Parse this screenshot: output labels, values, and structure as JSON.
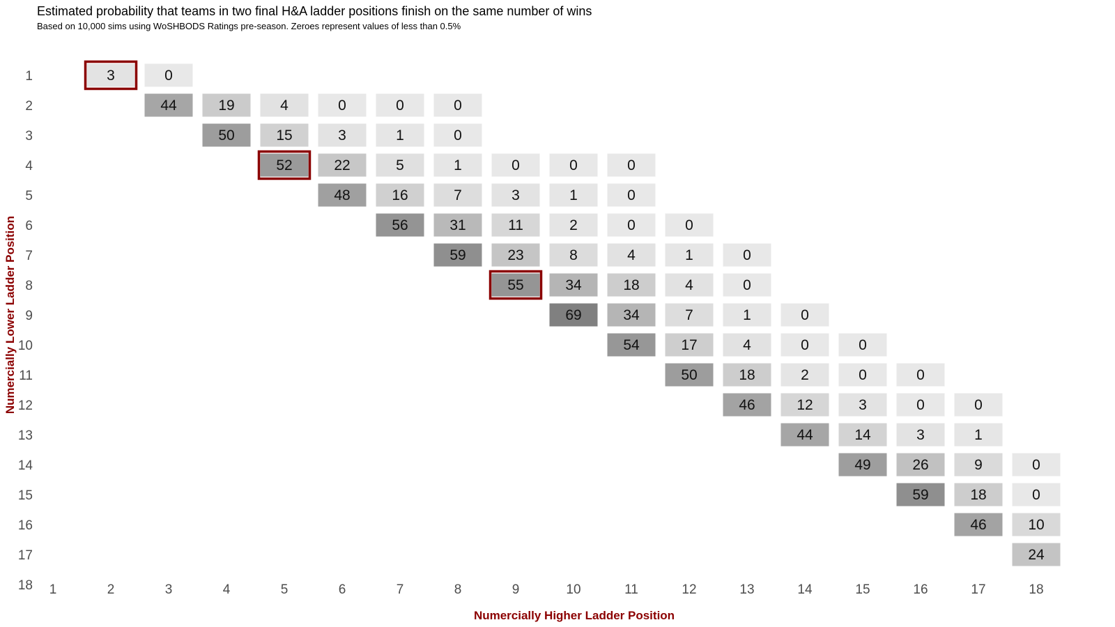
{
  "colors": {
    "axis_title": "#8b0000",
    "highlight_border": "#8b0000",
    "cell_low": "#e8e8e8",
    "cell_high": "#808080",
    "tick_text": "#4d4d4d"
  },
  "chart_data": {
    "type": "heatmap",
    "title": "Estimated probability that teams in two final H&A ladder positions finish on the same number of wins",
    "subtitle": "Based on 10,000 sims using WoSHBODS Ratings pre-season. Zeroes represent values of less than 0.5%",
    "xlabel": "Numercially Higher Ladder Position",
    "ylabel": "Numercially Lower Ladder Position",
    "x_ticks": [
      "1",
      "2",
      "3",
      "4",
      "5",
      "6",
      "7",
      "8",
      "9",
      "10",
      "11",
      "12",
      "13",
      "14",
      "15",
      "16",
      "17",
      "18"
    ],
    "y_ticks": [
      "1",
      "2",
      "3",
      "4",
      "5",
      "6",
      "7",
      "8",
      "9",
      "10",
      "11",
      "12",
      "13",
      "14",
      "15",
      "16",
      "17",
      "18"
    ],
    "cells": [
      {
        "y": 1,
        "x": 2,
        "value": 3,
        "highlight": true
      },
      {
        "y": 1,
        "x": 3,
        "value": 0
      },
      {
        "y": 2,
        "x": 3,
        "value": 44
      },
      {
        "y": 2,
        "x": 4,
        "value": 19
      },
      {
        "y": 2,
        "x": 5,
        "value": 4
      },
      {
        "y": 2,
        "x": 6,
        "value": 0
      },
      {
        "y": 2,
        "x": 7,
        "value": 0
      },
      {
        "y": 2,
        "x": 8,
        "value": 0
      },
      {
        "y": 3,
        "x": 4,
        "value": 50
      },
      {
        "y": 3,
        "x": 5,
        "value": 15
      },
      {
        "y": 3,
        "x": 6,
        "value": 3
      },
      {
        "y": 3,
        "x": 7,
        "value": 1
      },
      {
        "y": 3,
        "x": 8,
        "value": 0
      },
      {
        "y": 4,
        "x": 5,
        "value": 52,
        "highlight": true
      },
      {
        "y": 4,
        "x": 6,
        "value": 22
      },
      {
        "y": 4,
        "x": 7,
        "value": 5
      },
      {
        "y": 4,
        "x": 8,
        "value": 1
      },
      {
        "y": 4,
        "x": 9,
        "value": 0
      },
      {
        "y": 4,
        "x": 10,
        "value": 0
      },
      {
        "y": 4,
        "x": 11,
        "value": 0
      },
      {
        "y": 5,
        "x": 6,
        "value": 48
      },
      {
        "y": 5,
        "x": 7,
        "value": 16
      },
      {
        "y": 5,
        "x": 8,
        "value": 7
      },
      {
        "y": 5,
        "x": 9,
        "value": 3
      },
      {
        "y": 5,
        "x": 10,
        "value": 1
      },
      {
        "y": 5,
        "x": 11,
        "value": 0
      },
      {
        "y": 6,
        "x": 7,
        "value": 56
      },
      {
        "y": 6,
        "x": 8,
        "value": 31
      },
      {
        "y": 6,
        "x": 9,
        "value": 11
      },
      {
        "y": 6,
        "x": 10,
        "value": 2
      },
      {
        "y": 6,
        "x": 11,
        "value": 0
      },
      {
        "y": 6,
        "x": 12,
        "value": 0
      },
      {
        "y": 7,
        "x": 8,
        "value": 59
      },
      {
        "y": 7,
        "x": 9,
        "value": 23
      },
      {
        "y": 7,
        "x": 10,
        "value": 8
      },
      {
        "y": 7,
        "x": 11,
        "value": 4
      },
      {
        "y": 7,
        "x": 12,
        "value": 1
      },
      {
        "y": 7,
        "x": 13,
        "value": 0
      },
      {
        "y": 8,
        "x": 9,
        "value": 55,
        "highlight": true
      },
      {
        "y": 8,
        "x": 10,
        "value": 34
      },
      {
        "y": 8,
        "x": 11,
        "value": 18
      },
      {
        "y": 8,
        "x": 12,
        "value": 4
      },
      {
        "y": 8,
        "x": 13,
        "value": 0
      },
      {
        "y": 9,
        "x": 10,
        "value": 69
      },
      {
        "y": 9,
        "x": 11,
        "value": 34
      },
      {
        "y": 9,
        "x": 12,
        "value": 7
      },
      {
        "y": 9,
        "x": 13,
        "value": 1
      },
      {
        "y": 9,
        "x": 14,
        "value": 0
      },
      {
        "y": 10,
        "x": 11,
        "value": 54
      },
      {
        "y": 10,
        "x": 12,
        "value": 17
      },
      {
        "y": 10,
        "x": 13,
        "value": 4
      },
      {
        "y": 10,
        "x": 14,
        "value": 0
      },
      {
        "y": 10,
        "x": 15,
        "value": 0
      },
      {
        "y": 11,
        "x": 12,
        "value": 50
      },
      {
        "y": 11,
        "x": 13,
        "value": 18
      },
      {
        "y": 11,
        "x": 14,
        "value": 2
      },
      {
        "y": 11,
        "x": 15,
        "value": 0
      },
      {
        "y": 11,
        "x": 16,
        "value": 0
      },
      {
        "y": 12,
        "x": 13,
        "value": 46
      },
      {
        "y": 12,
        "x": 14,
        "value": 12
      },
      {
        "y": 12,
        "x": 15,
        "value": 3
      },
      {
        "y": 12,
        "x": 16,
        "value": 0
      },
      {
        "y": 12,
        "x": 17,
        "value": 0
      },
      {
        "y": 13,
        "x": 14,
        "value": 44
      },
      {
        "y": 13,
        "x": 15,
        "value": 14
      },
      {
        "y": 13,
        "x": 16,
        "value": 3
      },
      {
        "y": 13,
        "x": 17,
        "value": 1
      },
      {
        "y": 14,
        "x": 15,
        "value": 49
      },
      {
        "y": 14,
        "x": 16,
        "value": 26
      },
      {
        "y": 14,
        "x": 17,
        "value": 9
      },
      {
        "y": 14,
        "x": 18,
        "value": 0
      },
      {
        "y": 15,
        "x": 16,
        "value": 59
      },
      {
        "y": 15,
        "x": 17,
        "value": 18
      },
      {
        "y": 15,
        "x": 18,
        "value": 0
      },
      {
        "y": 16,
        "x": 17,
        "value": 46
      },
      {
        "y": 16,
        "x": 18,
        "value": 10
      },
      {
        "y": 17,
        "x": 18,
        "value": 24
      }
    ]
  }
}
